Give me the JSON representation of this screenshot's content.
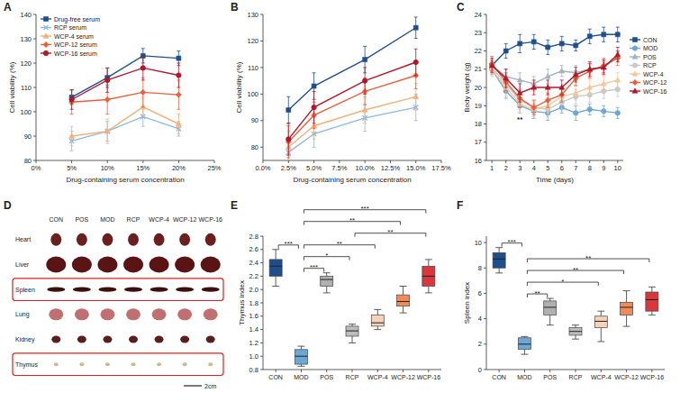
{
  "chart_data": [
    {
      "type": "line",
      "panel": "A",
      "x_label": "Drug-containing serum concentration",
      "y_label": "Cell viability (%)",
      "x": [
        5,
        10,
        15,
        20
      ],
      "xlim": [
        0,
        25
      ],
      "xticks": [
        {
          "value": 0,
          "label": "0%"
        },
        {
          "value": 5,
          "label": "5%"
        },
        {
          "value": 10,
          "label": "10%"
        },
        {
          "value": 15,
          "label": "15%"
        },
        {
          "value": 20,
          "label": "20%"
        },
        {
          "value": 25,
          "label": "25%"
        }
      ],
      "ylim": [
        80,
        140
      ],
      "yticks": [
        80,
        90,
        100,
        110,
        120,
        130,
        140
      ],
      "grid": false,
      "legend": "upper left",
      "series": [
        {
          "name": "Drug-free serum",
          "color": "#1f4e8c",
          "marker": "square",
          "values": [
            106,
            114,
            123,
            122
          ],
          "errors": [
            3,
            4,
            3,
            3
          ]
        },
        {
          "name": "RCP serum",
          "color": "#8fb8d9",
          "marker": "x",
          "values": [
            88,
            92,
            98,
            93
          ],
          "errors": [
            4,
            4,
            4,
            3
          ]
        },
        {
          "name": "WCP-4  serum",
          "color": "#f0b27a",
          "marker": "triangle",
          "values": [
            90,
            92,
            102,
            95
          ],
          "errors": [
            4,
            5,
            4,
            4
          ]
        },
        {
          "name": "WCP-12 serum",
          "color": "#e8603c",
          "marker": "diamond",
          "values": [
            104,
            105,
            108,
            107
          ],
          "errors": [
            5,
            6,
            6,
            6
          ]
        },
        {
          "name": "WCP-16 serum",
          "color": "#b2182b",
          "marker": "circle",
          "values": [
            105,
            113,
            118,
            115
          ],
          "errors": [
            4,
            5,
            5,
            5
          ]
        }
      ]
    },
    {
      "type": "line",
      "panel": "B",
      "x_label": "Drug-containing serum concentration",
      "y_label": "Cell viability (%)",
      "x": [
        2.5,
        5,
        10,
        15
      ],
      "xlim": [
        0,
        17.5
      ],
      "xticks": [
        {
          "value": 0,
          "label": "0.0%"
        },
        {
          "value": 2.5,
          "label": "2.5%"
        },
        {
          "value": 5,
          "label": "5.0%"
        },
        {
          "value": 7.5,
          "label": "7.5%"
        },
        {
          "value": 10,
          "label": "10.0%"
        },
        {
          "value": 12.5,
          "label": "12.5%"
        },
        {
          "value": 15,
          "label": "15.0%"
        },
        {
          "value": 17.5,
          "label": "17.5%"
        }
      ],
      "ylim": [
        75,
        130
      ],
      "yticks": [
        80,
        90,
        100,
        110,
        120,
        130
      ],
      "grid": false,
      "series": [
        {
          "color": "#1f4e8c",
          "marker": "square",
          "values": [
            94,
            103,
            113,
            125
          ],
          "errors": [
            5,
            5,
            5,
            4
          ]
        },
        {
          "color": "#8fb8d9",
          "marker": "x",
          "values": [
            78,
            85,
            91,
            95
          ],
          "errors": [
            5,
            5,
            5,
            5
          ]
        },
        {
          "color": "#f0b27a",
          "marker": "triangle",
          "values": [
            80,
            88,
            94,
            99
          ],
          "errors": [
            6,
            5,
            5,
            5
          ]
        },
        {
          "color": "#e8603c",
          "marker": "diamond",
          "values": [
            82,
            92,
            101,
            107
          ],
          "errors": [
            6,
            5,
            5,
            5
          ]
        },
        {
          "color": "#b2182b",
          "marker": "circle",
          "values": [
            83,
            95,
            105,
            112
          ],
          "errors": [
            6,
            6,
            5,
            5
          ]
        }
      ]
    },
    {
      "type": "line",
      "panel": "C",
      "x_label": "Time (days)",
      "y_label": "Body weight (g)",
      "x": [
        1,
        2,
        3,
        4,
        5,
        6,
        7,
        8,
        9,
        10
      ],
      "xlim": [
        0.6,
        10.4
      ],
      "xticks": [
        1,
        2,
        3,
        4,
        5,
        6,
        7,
        8,
        9,
        10
      ],
      "ylim": [
        16,
        24
      ],
      "yticks": [
        16,
        17,
        18,
        19,
        20,
        21,
        22,
        23,
        24
      ],
      "grid": false,
      "legend": "right",
      "annotations": [
        {
          "text": "**",
          "x": 3
        }
      ],
      "series": [
        {
          "name": "CON",
          "color": "#1f4e8c",
          "marker": "square",
          "values": [
            21.2,
            22.0,
            22.4,
            22.5,
            22.2,
            22.4,
            22.3,
            22.8,
            22.9,
            22.9
          ],
          "errors": [
            0.3,
            0.4,
            0.5,
            0.4,
            0.4,
            0.4,
            0.3,
            0.4,
            0.4,
            0.4
          ]
        },
        {
          "name": "MOD",
          "color": "#6ea6d4",
          "marker": "circle",
          "values": [
            21.0,
            19.8,
            19.0,
            18.7,
            18.6,
            18.9,
            18.6,
            18.8,
            18.7,
            18.6
          ],
          "errors": [
            0.3,
            0.4,
            0.4,
            0.4,
            0.4,
            0.3,
            0.4,
            0.3,
            0.3,
            0.3
          ]
        },
        {
          "name": "POS",
          "color": "#9fb3c0",
          "marker": "triangle",
          "values": [
            21.2,
            20.6,
            20.4,
            20.2,
            20.6,
            20.9,
            20.8,
            21.0,
            21.1,
            21.7
          ],
          "errors": [
            0.3,
            0.4,
            0.4,
            0.4,
            0.4,
            0.3,
            0.4,
            0.3,
            0.3,
            0.3
          ]
        },
        {
          "name": "RCP",
          "color": "#c8c8c8",
          "marker": "circle",
          "values": [
            21.1,
            20.2,
            19.3,
            18.9,
            18.8,
            19.2,
            19.5,
            19.6,
            19.8,
            19.9
          ],
          "errors": [
            0.4,
            0.4,
            0.5,
            0.4,
            0.4,
            0.4,
            0.4,
            0.4,
            0.4,
            0.4
          ]
        },
        {
          "name": "WCP-4",
          "color": "#f4c89c",
          "marker": "triangle",
          "values": [
            21.0,
            20.0,
            19.1,
            18.8,
            19.0,
            19.5,
            19.7,
            20.0,
            20.2,
            20.4
          ],
          "errors": [
            0.4,
            0.5,
            0.5,
            0.4,
            0.4,
            0.4,
            0.4,
            0.4,
            0.4,
            0.4
          ]
        },
        {
          "name": "WCP-12",
          "color": "#e8603c",
          "marker": "diamond",
          "values": [
            21.3,
            20.3,
            19.4,
            18.9,
            19.3,
            19.6,
            20.5,
            20.9,
            21.2,
            21.6
          ],
          "errors": [
            0.4,
            0.5,
            0.5,
            0.4,
            0.4,
            0.4,
            0.4,
            0.4,
            0.4,
            0.4
          ]
        },
        {
          "name": "WCP-16",
          "color": "#b2182b",
          "marker": "triangle",
          "values": [
            21.2,
            20.5,
            19.7,
            20.0,
            20.0,
            20.0,
            20.7,
            21.0,
            21.1,
            21.8
          ],
          "errors": [
            0.4,
            0.5,
            0.5,
            0.4,
            0.4,
            0.4,
            0.4,
            0.4,
            0.4,
            0.4
          ]
        }
      ]
    },
    {
      "type": "image",
      "panel": "D",
      "columns": [
        "CON",
        "POS",
        "MOD",
        "RCP",
        "WCP-4",
        "WCP-12",
        "WCP-16"
      ],
      "rows": [
        "Heart",
        "Liver",
        "Spleen",
        "Lung",
        "Kidney",
        "Thymus"
      ],
      "highlighted": [
        "Spleen",
        "Thymus"
      ],
      "scale_bar": "2cm"
    },
    {
      "type": "box",
      "panel": "E",
      "y_label": "Thymus index",
      "categories": [
        "CON",
        "MOD",
        "POS",
        "RCP",
        "WCP-4",
        "WCP-12",
        "WCP-16"
      ],
      "colors": [
        "#1f4e8c",
        "#6ea6d4",
        "#b0b0b0",
        "#bdbdbd",
        "#f6d2b8",
        "#f08a58",
        "#d9363e"
      ],
      "ylim": [
        0.8,
        2.8
      ],
      "yticks": [
        0.8,
        {
          "value": 1,
          "label": "1.0"
        },
        1.2,
        1.4,
        1.6,
        1.8,
        {
          "value": 2,
          "label": "2.0"
        },
        2.2,
        2.4,
        2.6,
        2.8
      ],
      "boxes": [
        {
          "min": 2.05,
          "q1": 2.2,
          "median": 2.35,
          "q3": 2.45,
          "max": 2.6
        },
        {
          "min": 0.85,
          "q1": 0.88,
          "median": 1.0,
          "q3": 1.1,
          "max": 1.15
        },
        {
          "min": 1.95,
          "q1": 2.05,
          "median": 2.15,
          "q3": 2.2,
          "max": 2.25
        },
        {
          "min": 1.2,
          "q1": 1.3,
          "median": 1.38,
          "q3": 1.45,
          "max": 1.48
        },
        {
          "min": 1.4,
          "q1": 1.45,
          "median": 1.5,
          "q3": 1.62,
          "max": 1.7
        },
        {
          "min": 1.65,
          "q1": 1.75,
          "median": 1.82,
          "q3": 1.92,
          "max": 2.05
        },
        {
          "min": 1.95,
          "q1": 2.05,
          "median": 2.2,
          "q3": 2.35,
          "max": 2.45
        }
      ],
      "comparisons": [
        {
          "between": [
            "CON",
            "MOD"
          ],
          "label": "***"
        },
        {
          "between": [
            "MOD",
            "POS"
          ],
          "label": "***"
        },
        {
          "between": [
            "MOD",
            "RCP"
          ],
          "label": "*"
        },
        {
          "between": [
            "MOD",
            "WCP-4"
          ],
          "label": "**"
        },
        {
          "between": [
            "MOD",
            "WCP-12"
          ],
          "label": "**"
        },
        {
          "between": [
            "MOD",
            "WCP-16"
          ],
          "label": "***"
        },
        {
          "between": [
            "RCP",
            "WCP-16"
          ],
          "label": "**"
        }
      ]
    },
    {
      "type": "box",
      "panel": "F",
      "y_label": "Spleen index",
      "categories": [
        "CON",
        "MOD",
        "POS",
        "RCP",
        "WCP-4",
        "WCP-12",
        "WCP-16"
      ],
      "colors": [
        "#1f4e8c",
        "#6ea6d4",
        "#b0b0b0",
        "#bdbdbd",
        "#f6d2b8",
        "#f08a58",
        "#d9363e"
      ],
      "ylim": [
        0,
        10.5
      ],
      "yticks": [
        0,
        2,
        4,
        6,
        8,
        10
      ],
      "boxes": [
        {
          "min": 7.6,
          "q1": 8.0,
          "median": 8.7,
          "q3": 9.2,
          "max": 9.6
        },
        {
          "min": 1.2,
          "q1": 1.6,
          "median": 2.0,
          "q3": 2.5,
          "max": 2.6
        },
        {
          "min": 3.5,
          "q1": 4.3,
          "median": 4.9,
          "q3": 5.4,
          "max": 5.6
        },
        {
          "min": 2.4,
          "q1": 2.7,
          "median": 3.0,
          "q3": 3.3,
          "max": 3.5
        },
        {
          "min": 2.2,
          "q1": 3.3,
          "median": 3.8,
          "q3": 4.2,
          "max": 4.6
        },
        {
          "min": 3.4,
          "q1": 4.3,
          "median": 4.9,
          "q3": 5.3,
          "max": 6.2
        },
        {
          "min": 4.3,
          "q1": 4.6,
          "median": 5.5,
          "q3": 6.1,
          "max": 6.5
        }
      ],
      "comparisons": [
        {
          "between": [
            "CON",
            "MOD"
          ],
          "label": "***"
        },
        {
          "between": [
            "MOD",
            "POS"
          ],
          "label": "**"
        },
        {
          "between": [
            "MOD",
            "WCP-4"
          ],
          "label": "*"
        },
        {
          "between": [
            "MOD",
            "WCP-12"
          ],
          "label": "**"
        },
        {
          "between": [
            "MOD",
            "WCP-16"
          ],
          "label": "**"
        }
      ]
    }
  ]
}
